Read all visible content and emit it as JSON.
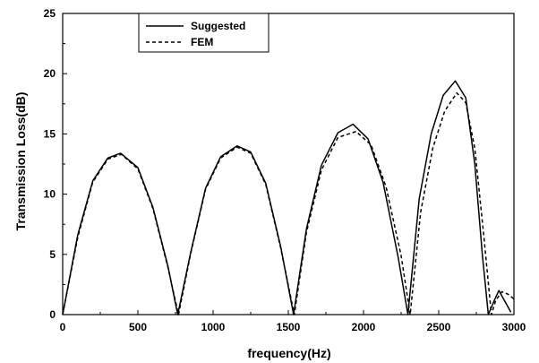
{
  "chart_data": {
    "type": "line",
    "title": "",
    "xlabel": "frequency(Hz)",
    "ylabel": "Transmission Loss(dB)",
    "xlim": [
      0,
      3000
    ],
    "ylim": [
      0,
      25
    ],
    "xticks": [
      0,
      500,
      1000,
      1500,
      2000,
      2500,
      3000
    ],
    "yticks": [
      0,
      5,
      10,
      15,
      20,
      25
    ],
    "grid": false,
    "legend_position": "top-left",
    "series": [
      {
        "name": "Suggested",
        "style": "solid",
        "color": "#000000",
        "x": [
          0,
          100,
          200,
          300,
          385,
          500,
          600,
          700,
          765,
          850,
          950,
          1050,
          1160,
          1250,
          1350,
          1450,
          1535,
          1620,
          1720,
          1830,
          1930,
          2030,
          2130,
          2230,
          2295,
          2370,
          2450,
          2530,
          2610,
          2680,
          2740,
          2790,
          2830,
          2870,
          2900,
          2940,
          2980
        ],
        "y": [
          0,
          6.6,
          11.1,
          13.0,
          13.4,
          12.2,
          8.9,
          4.0,
          0,
          5.1,
          10.5,
          13.1,
          14.0,
          13.5,
          10.9,
          5.6,
          0,
          7.1,
          12.4,
          15.1,
          15.8,
          14.6,
          11.0,
          4.8,
          0,
          9.6,
          15.0,
          18.2,
          19.4,
          18.0,
          12.5,
          5.0,
          0,
          1.2,
          2.0,
          1.1,
          0.2
        ]
      },
      {
        "name": "FEM",
        "style": "dashed",
        "color": "#000000",
        "x": [
          0,
          100,
          200,
          300,
          390,
          500,
          600,
          700,
          770,
          850,
          950,
          1050,
          1160,
          1250,
          1350,
          1450,
          1540,
          1620,
          1720,
          1830,
          1950,
          2050,
          2150,
          2250,
          2310,
          2380,
          2460,
          2540,
          2620,
          2680,
          2740,
          2800,
          2850,
          2880,
          2920,
          2960,
          3000
        ],
        "y": [
          0,
          6.4,
          11.0,
          12.9,
          13.3,
          12.1,
          8.8,
          3.9,
          0,
          5.0,
          10.4,
          13.0,
          13.9,
          13.4,
          10.8,
          5.5,
          0,
          6.8,
          12.0,
          14.7,
          15.2,
          14.1,
          10.6,
          4.9,
          0,
          8.5,
          13.8,
          16.9,
          18.4,
          17.6,
          13.8,
          6.5,
          0,
          1.2,
          1.9,
          1.7,
          1.3
        ]
      }
    ]
  }
}
